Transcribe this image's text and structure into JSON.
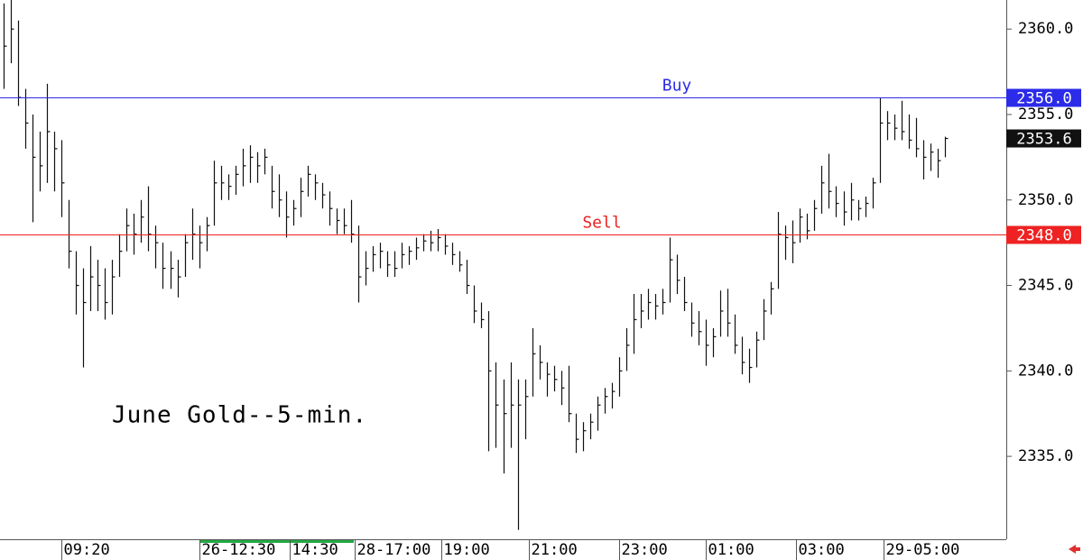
{
  "chart_data": {
    "type": "ohlc",
    "annotation": "June Gold--5-min.",
    "color": "#111111",
    "ylim": [
      2330.15,
      2361.7
    ],
    "yticks": [
      {
        "value": 2335,
        "label": "2335.0"
      },
      {
        "value": 2340,
        "label": "2340.0"
      },
      {
        "value": 2345,
        "label": "2345.0"
      },
      {
        "value": 2350,
        "label": "2350.0"
      },
      {
        "value": 2355,
        "label": "2355.0"
      },
      {
        "value": 2360,
        "label": "2360.0"
      }
    ],
    "xlim": [
      -0.5,
      138.5
    ],
    "xticks": [
      {
        "value": 8,
        "label": "09:20"
      },
      {
        "value": 27,
        "label": "26-12:30"
      },
      {
        "value": 39.5,
        "label": "14:30"
      },
      {
        "value": 48.5,
        "label": "28-17:00"
      },
      {
        "value": 60.5,
        "label": "19:00"
      },
      {
        "value": 72.5,
        "label": "21:00"
      },
      {
        "value": 85,
        "label": "23:00"
      },
      {
        "value": 97,
        "label": "01:00"
      },
      {
        "value": 109.5,
        "label": "03:00"
      },
      {
        "value": 121.5,
        "label": "29-05:00"
      }
    ],
    "levels": [
      {
        "name": "Buy",
        "price": {
          "value": 2356,
          "label": "2356.0"
        },
        "color": "#2b2be8"
      },
      {
        "name": "Sell",
        "price": {
          "value": 2348,
          "label": "2348.0"
        },
        "color": "#ee2222"
      }
    ],
    "high": [
      2361.5,
      2361.7,
      2360.5,
      2356.5,
      2355,
      2354,
      2356.8,
      2354,
      2353.5,
      2350,
      2347,
      2346,
      2347.3,
      2346.5,
      2346,
      2346.5,
      2348,
      2349.5,
      2349.2,
      2350,
      2350.8,
      2348.5,
      2347.5,
      2347,
      2346.5,
      2348,
      2349.5,
      2348.5,
      2349,
      2352.3,
      2352,
      2351.5,
      2352,
      2353,
      2353.2,
      2352.8,
      2353,
      2352,
      2351.5,
      2350.5,
      2350,
      2351.3,
      2352,
      2351.5,
      2351,
      2350.5,
      2349.5,
      2349.5,
      2350,
      2348.5,
      2347,
      2347.3,
      2347.5,
      2347,
      2347,
      2347.5,
      2347.3,
      2347.8,
      2348,
      2348.2,
      2348.3,
      2348,
      2347.5,
      2347,
      2346.5,
      2345,
      2344,
      2343.5,
      2340.5,
      2339.5,
      2340.5,
      2339.5,
      2339.5,
      2342.5,
      2341.5,
      2340.5,
      2340.3,
      2340,
      2340.3,
      2337.5,
      2337,
      2337.5,
      2338.5,
      2339,
      2339.3,
      2340.8,
      2342.5,
      2344.5,
      2344.5,
      2344.8,
      2344.5,
      2344.8,
      2347.8,
      2346.8,
      2345.5,
      2344,
      2343.5,
      2343,
      2342.5,
      2344.7,
      2344.8,
      2343.3,
      2342,
      2341.3,
      2342.3,
      2344.2,
      2345.2,
      2349.3,
      2348.5,
      2348.8,
      2349.5,
      2349.2,
      2350,
      2352,
      2352.7,
      2350.8,
      2350.5,
      2351,
      2350,
      2350.2,
      2351.3,
      2356,
      2355.2,
      2355,
      2355.8,
      2355,
      2354.8,
      2353.5,
      2353.3,
      2353,
      2353.7
    ],
    "low": [
      2356.5,
      2358,
      2355.5,
      2353,
      2348.7,
      2350.5,
      2351,
      2350.5,
      2349,
      2346,
      2343.3,
      2340.2,
      2343.5,
      2343.5,
      2343,
      2343.3,
      2345.5,
      2347,
      2346.8,
      2347.5,
      2347,
      2346,
      2344.8,
      2344.8,
      2344.3,
      2345.5,
      2346.5,
      2346,
      2347,
      2348.5,
      2350,
      2350,
      2350.3,
      2350.8,
      2351,
      2351,
      2351.5,
      2349.5,
      2349,
      2347.8,
      2348.5,
      2349,
      2350.2,
      2350,
      2349.5,
      2348.5,
      2348,
      2348,
      2347.5,
      2344,
      2345,
      2345.8,
      2346,
      2345.5,
      2345.5,
      2346,
      2346.2,
      2346.5,
      2347,
      2347,
      2347,
      2346.8,
      2346.2,
      2345.8,
      2344.5,
      2342.8,
      2342.5,
      2335.3,
      2335.5,
      2334,
      2335.5,
      2330.7,
      2336,
      2338.5,
      2339.5,
      2338.5,
      2338.8,
      2338,
      2337,
      2335.2,
      2335.3,
      2336,
      2336.5,
      2337.5,
      2337.8,
      2338.5,
      2340,
      2341,
      2342.5,
      2343,
      2343,
      2343.3,
      2344,
      2344.5,
      2343.5,
      2342,
      2341.5,
      2340.3,
      2340.8,
      2342,
      2342,
      2341,
      2339.8,
      2339.3,
      2340.2,
      2341.8,
      2343.3,
      2344.8,
      2346.5,
      2346.3,
      2347.5,
      2347.7,
      2348.2,
      2349.2,
      2349.5,
      2349,
      2348.5,
      2348.8,
      2348.8,
      2349,
      2349.5,
      2351,
      2353.5,
      2353.5,
      2353.5,
      2353,
      2352.5,
      2351.2,
      2351.7,
      2351.3,
      2352.5
    ],
    "close": [
      2359,
      2360,
      2356,
      2354.5,
      2352.5,
      2352,
      2354,
      2353,
      2351,
      2347,
      2345,
      2344,
      2345.5,
      2345,
      2344,
      2345.5,
      2347,
      2348.5,
      2348,
      2349,
      2348,
      2347.5,
      2346,
      2346,
      2345.5,
      2347.5,
      2348,
      2347.5,
      2348.5,
      2351,
      2351,
      2350.8,
      2351.5,
      2352,
      2352.5,
      2352,
      2352.5,
      2350.5,
      2350,
      2349,
      2349.5,
      2350.5,
      2351.5,
      2351,
      2350.3,
      2349.5,
      2348.8,
      2348.5,
      2348,
      2345.5,
      2346,
      2346.8,
      2347,
      2346.2,
      2346,
      2346.8,
      2347,
      2347.2,
      2347.6,
      2347.5,
      2347.8,
      2347.3,
      2346.8,
      2346.2,
      2345,
      2343.5,
      2343,
      2340,
      2338,
      2337.5,
      2338,
      2338,
      2338.5,
      2341,
      2340.5,
      2339.8,
      2339.5,
      2339,
      2337.5,
      2336,
      2336.5,
      2337,
      2338,
      2338.5,
      2338.8,
      2340,
      2341.5,
      2343,
      2343.5,
      2344,
      2343.8,
      2344,
      2346.5,
      2345.3,
      2344,
      2342.8,
      2342.3,
      2341.5,
      2342,
      2343.5,
      2342.8,
      2341.5,
      2340.5,
      2340.2,
      2341.8,
      2343.5,
      2344.8,
      2348,
      2347.8,
      2347.5,
      2349,
      2348.2,
      2349.5,
      2351,
      2350.5,
      2349.8,
      2349.3,
      2350,
      2349.5,
      2349.8,
      2351,
      2354.5,
      2354.5,
      2354.2,
      2354,
      2353.5,
      2353,
      2352.5,
      2352.8,
      2352.3,
      2353.6
    ]
  }
}
